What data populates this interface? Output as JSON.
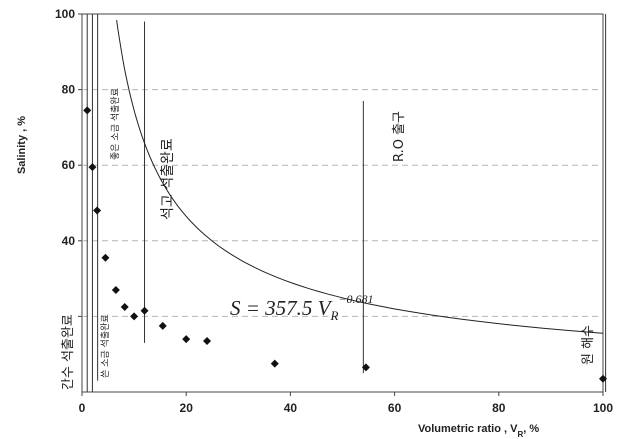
{
  "chart_data": {
    "type": "scatter",
    "xlabel": "Volumetric ratio , V",
    "xlabel_sub": "R",
    "xlabel_unit": ",   %",
    "ylabel": "Salinity , %",
    "xlim": [
      0,
      100
    ],
    "ylim": [
      0,
      100
    ],
    "x_ticks": [
      0,
      20,
      40,
      60,
      80,
      100
    ],
    "y_ticks": [
      20,
      40,
      60,
      80,
      100
    ],
    "x_tick_labels": [
      "0",
      "20",
      "40",
      "60",
      "80",
      "100"
    ],
    "y_tick_labels": [
      "",
      "40",
      "60",
      "80",
      "100"
    ],
    "grid": "horizontal dashed",
    "series": [
      {
        "marker": "diamond",
        "points": [
          {
            "x": 1.0,
            "y": 74.5
          },
          {
            "x": 2.0,
            "y": 59.5
          },
          {
            "x": 2.9,
            "y": 48.0
          },
          {
            "x": 4.5,
            "y": 35.5
          },
          {
            "x": 6.5,
            "y": 27.0
          },
          {
            "x": 8.2,
            "y": 22.5
          },
          {
            "x": 10.0,
            "y": 20.0
          },
          {
            "x": 12.0,
            "y": 21.5
          },
          {
            "x": 15.5,
            "y": 17.5
          },
          {
            "x": 20.0,
            "y": 14.0
          },
          {
            "x": 24.0,
            "y": 13.5
          },
          {
            "x": 37.0,
            "y": 7.5
          },
          {
            "x": 54.5,
            "y": 6.5
          },
          {
            "x": 100.0,
            "y": 3.5
          }
        ]
      }
    ],
    "fit": {
      "equation": "S = 357.5 V",
      "equation_sub": "R",
      "equation_exp": "−0.681",
      "a": 357.5,
      "b": -0.681
    },
    "vertical_lines": [
      {
        "x": 1.0,
        "y_top": 100,
        "y_bottom": 0
      },
      {
        "x": 2.0,
        "y_top": 100,
        "y_bottom": 0
      },
      {
        "x": 3.0,
        "y_top": 100,
        "y_bottom": 3
      },
      {
        "x": 12.0,
        "y_top": 98,
        "y_bottom": 13
      },
      {
        "x": 54.0,
        "y_top": 77,
        "y_bottom": 5
      },
      {
        "x": 100.5,
        "y_top": 100,
        "y_bottom": 0
      }
    ],
    "annotations": [
      {
        "text": "간수 석출완료"
      },
      {
        "text": "좋은 소금 석출완료"
      },
      {
        "text": "쓴 소금 석출완료"
      },
      {
        "text": "석고 석출완료"
      },
      {
        "text": "R.O 출구"
      },
      {
        "text": "원 해수"
      }
    ]
  }
}
